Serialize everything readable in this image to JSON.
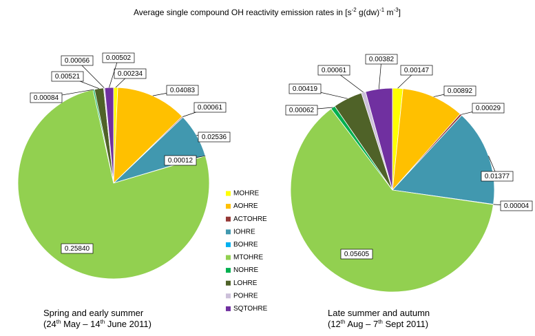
{
  "title": [
    "Average single compound OH reactivity emission rates in [s",
    "-2",
    " g(dw)",
    "-1",
    " m",
    "-3",
    "]"
  ],
  "legend": {
    "categories": [
      "MOHRE",
      "AOHRE",
      "ACTOHRE",
      "IOHRE",
      "BOHRE",
      "MTOHRE",
      "NOHRE",
      "LOHRE",
      "POHRE",
      "SQTOHRE"
    ],
    "colors": [
      "#ffff00",
      "#ffc000",
      "#953735",
      "#4198af",
      "#00b0f0",
      "#92d050",
      "#00b050",
      "#4f6228",
      "#ccc0da",
      "#7030a0"
    ]
  },
  "chart_data": [
    {
      "type": "pie",
      "title_lines": [
        [
          "Spring and early summer"
        ],
        [
          "(24",
          "th",
          " May – 14",
          "th",
          " June 2011)"
        ]
      ],
      "values": [
        0.00234,
        0.04083,
        0.00061,
        0.02536,
        0.00012,
        0.2584,
        0.00084,
        0.00521,
        0.00066,
        0.00502
      ],
      "value_labels": [
        "0.00234",
        "0.04083",
        "0.00061",
        "0.02536",
        "0.00012",
        "0.25840",
        "0.00084",
        "0.00521",
        "0.00066",
        "0.00502"
      ]
    },
    {
      "type": "pie",
      "title_lines": [
        [
          "Late summer and autumn"
        ],
        [
          "(12",
          "th",
          " Aug – 7",
          "th",
          " Sept 2011)"
        ]
      ],
      "values": [
        0.00147,
        0.00892,
        0.00029,
        0.01377,
        4e-05,
        0.05605,
        0.00062,
        0.00419,
        0.00061,
        0.00382
      ],
      "value_labels": [
        "0.00147",
        "0.00892",
        "0.00029",
        "0.01377",
        "0.00004",
        "0.05605",
        "0.00062",
        "0.00419",
        "0.00061",
        "0.00382"
      ]
    }
  ]
}
